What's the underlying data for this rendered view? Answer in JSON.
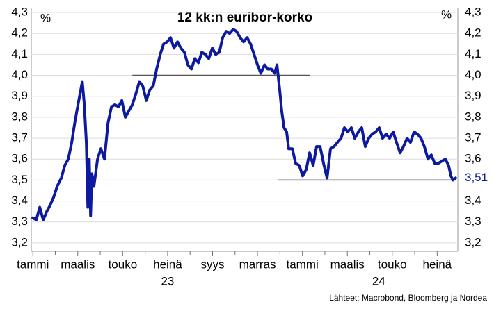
{
  "chart_data": {
    "type": "line",
    "title": "12 kk:n euribor-korko",
    "y_unit": "%",
    "y2_unit": "%",
    "source": "Lähteet: Macrobond, Bloomberg ja Nordea",
    "xlim": [
      -0.1,
      18.95
    ],
    "xticks": [
      {
        "value": 0,
        "label": "tammi"
      },
      {
        "value": 2,
        "label": "maalis"
      },
      {
        "value": 4,
        "label": "touko"
      },
      {
        "value": 6,
        "label": "heinä"
      },
      {
        "value": 8,
        "label": "syys"
      },
      {
        "value": 10,
        "label": "marras"
      },
      {
        "value": 12,
        "label": "tammi"
      },
      {
        "value": 14,
        "label": "maalis"
      },
      {
        "value": 16,
        "label": "touko"
      },
      {
        "value": 18,
        "label": "heinä"
      }
    ],
    "xminor": [
      1,
      3,
      5,
      7,
      9,
      11,
      13,
      15,
      17
    ],
    "year_labels": [
      {
        "value": 6,
        "label": "23"
      },
      {
        "value": 15.4,
        "label": "24"
      }
    ],
    "ylim": [
      3.16,
      4.32
    ],
    "yticks": [
      {
        "value": 3.2,
        "label": "3,2"
      },
      {
        "value": 3.3,
        "label": "3,3"
      },
      {
        "value": 3.4,
        "label": "3,4"
      },
      {
        "value": 3.5,
        "label": "3,5"
      },
      {
        "value": 3.6,
        "label": "3,6"
      },
      {
        "value": 3.7,
        "label": "3,7"
      },
      {
        "value": 3.8,
        "label": "3,8"
      },
      {
        "value": 3.9,
        "label": "3,9"
      },
      {
        "value": 4.0,
        "label": "4,0"
      },
      {
        "value": 4.1,
        "label": "4,1"
      },
      {
        "value": 4.2,
        "label": "4,2"
      },
      {
        "value": 4.3,
        "label": "4,3"
      }
    ],
    "y2lim": [
      3.16,
      4.32
    ],
    "y2ticks": [
      {
        "value": 3.2,
        "label": "3,2"
      },
      {
        "value": 3.3,
        "label": "3,3"
      },
      {
        "value": 3.4,
        "label": "3,4"
      },
      {
        "value": 3.6,
        "label": "3,6"
      },
      {
        "value": 3.7,
        "label": "3,7"
      },
      {
        "value": 3.8,
        "label": "3,8"
      },
      {
        "value": 3.9,
        "label": "3,9"
      },
      {
        "value": 4.0,
        "label": "4,0"
      },
      {
        "value": 4.1,
        "label": "4,1"
      },
      {
        "value": 4.2,
        "label": "4,2"
      },
      {
        "value": 4.3,
        "label": "4,3"
      }
    ],
    "last_label": {
      "value": 3.51,
      "label": "3,51"
    },
    "grid": true,
    "hlines": [
      {
        "value": 4.0,
        "from": 4.43,
        "to": 12.32
      },
      {
        "value": 3.5,
        "from": 10.93,
        "to": 18.82
      }
    ],
    "x": [
      0.0,
      0.15,
      0.31,
      0.46,
      0.62,
      0.77,
      0.93,
      1.08,
      1.27,
      1.42,
      1.58,
      1.73,
      1.86,
      2.01,
      2.2,
      2.29,
      2.38,
      2.45,
      2.51,
      2.57,
      2.63,
      2.72,
      2.88,
      3.03,
      3.19,
      3.34,
      3.5,
      3.65,
      3.81,
      3.96,
      4.12,
      4.27,
      4.43,
      4.58,
      4.74,
      4.89,
      5.05,
      5.2,
      5.36,
      5.51,
      5.67,
      5.82,
      5.98,
      6.13,
      6.28,
      6.44,
      6.59,
      6.75,
      6.9,
      7.06,
      7.21,
      7.37,
      7.52,
      7.68,
      7.83,
      7.99,
      8.14,
      8.3,
      8.45,
      8.61,
      8.76,
      8.92,
      9.07,
      9.23,
      9.38,
      9.54,
      9.69,
      9.85,
      10.0,
      10.15,
      10.31,
      10.46,
      10.62,
      10.77,
      10.87,
      10.99,
      11.08,
      11.18,
      11.3,
      11.39,
      11.55,
      11.7,
      11.86,
      12.01,
      12.17,
      12.32,
      12.48,
      12.63,
      12.79,
      12.94,
      13.1,
      13.25,
      13.41,
      13.56,
      13.72,
      13.87,
      14.02,
      14.18,
      14.33,
      14.49,
      14.64,
      14.8,
      14.95,
      15.11,
      15.26,
      15.42,
      15.57,
      15.73,
      15.88,
      16.04,
      16.19,
      16.35,
      16.5,
      16.66,
      16.81,
      16.97,
      17.12,
      17.28,
      17.43,
      17.59,
      17.74,
      17.89,
      18.05,
      18.2,
      18.36,
      18.51,
      18.61,
      18.7,
      18.82
    ],
    "series": [
      {
        "name": "12 kk euribor",
        "color": "#0d1a9e",
        "values": [
          3.32,
          3.31,
          3.37,
          3.31,
          3.35,
          3.38,
          3.42,
          3.47,
          3.51,
          3.57,
          3.6,
          3.68,
          3.77,
          3.86,
          3.97,
          3.86,
          3.68,
          3.37,
          3.6,
          3.33,
          3.53,
          3.47,
          3.6,
          3.65,
          3.6,
          3.77,
          3.85,
          3.86,
          3.85,
          3.88,
          3.8,
          3.83,
          3.86,
          3.91,
          3.97,
          3.95,
          3.88,
          3.93,
          3.95,
          4.03,
          4.1,
          4.15,
          4.16,
          4.18,
          4.13,
          4.16,
          4.13,
          4.11,
          4.05,
          4.03,
          4.08,
          4.06,
          4.11,
          4.1,
          4.08,
          4.13,
          4.1,
          4.11,
          4.18,
          4.21,
          4.2,
          4.22,
          4.21,
          4.18,
          4.16,
          4.18,
          4.15,
          4.1,
          4.05,
          4.01,
          4.05,
          4.03,
          4.03,
          4.01,
          4.05,
          3.93,
          3.83,
          3.75,
          3.73,
          3.65,
          3.65,
          3.58,
          3.57,
          3.52,
          3.55,
          3.63,
          3.57,
          3.66,
          3.66,
          3.58,
          3.51,
          3.65,
          3.66,
          3.68,
          3.7,
          3.75,
          3.73,
          3.75,
          3.7,
          3.73,
          3.75,
          3.66,
          3.7,
          3.72,
          3.73,
          3.75,
          3.7,
          3.72,
          3.7,
          3.73,
          3.68,
          3.63,
          3.66,
          3.7,
          3.68,
          3.73,
          3.72,
          3.7,
          3.66,
          3.6,
          3.62,
          3.58,
          3.58,
          3.59,
          3.6,
          3.57,
          3.52,
          3.5,
          3.51
        ]
      }
    ]
  }
}
